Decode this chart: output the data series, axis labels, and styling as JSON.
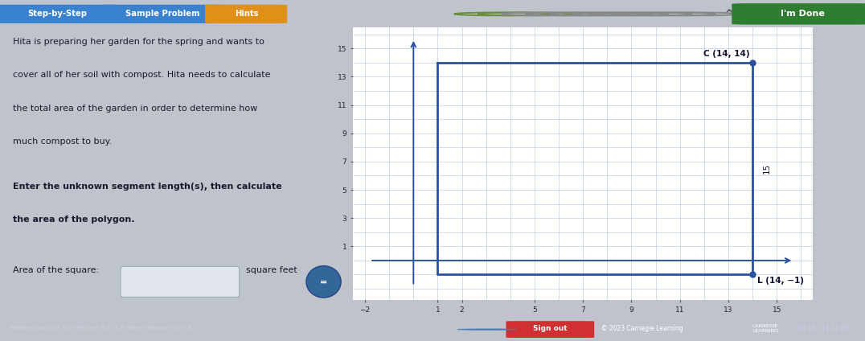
{
  "bg_color": "#bfc4cc",
  "top_bar_color": "#dde0e5",
  "left_panel_bg": "#cdd0d8",
  "btn_step_color": "#3a82d0",
  "btn_sample_color": "#3a82d0",
  "btn_hints_color": "#e09018",
  "btn_done_color": "#2e7d32",
  "btn_signout_color": "#d03030",
  "description_text_lines": [
    "Hita is preparing her garden for the spring and wants to",
    "cover all of her soil with compost. Hita needs to calculate",
    "the total area of the garden in order to determine how",
    "much compost to buy."
  ],
  "instruction_text_lines": [
    "Enter the unknown segment length(s), then calculate",
    "the area of the polygon."
  ],
  "area_label": "Area of the square:",
  "area_unit": "square feet",
  "point_C": [
    14,
    14
  ],
  "point_L": [
    14,
    -1
  ],
  "point_TL": [
    1,
    14
  ],
  "point_BL": [
    1,
    -1
  ],
  "label_C": "C (14, 14)",
  "label_L": "L (14, −1)",
  "side_label": "15",
  "grid_color": "#b0c4de",
  "square_color": "#2a50a0",
  "axis_color": "#2a50a0",
  "xmin": -2,
  "xmax": 16,
  "ymin": -2,
  "ymax": 16,
  "xticks": [
    -2,
    1,
    2,
    5,
    7,
    9,
    11,
    13,
    15
  ],
  "yticks": [
    1,
    3,
    5,
    7,
    9,
    11,
    13,
    15
  ],
  "copyright": "© 2023 Carnegie Learning",
  "carnegie_logo": "CARNEGIE\nLEARNING",
  "bottom_bar_color": "#3a6eb5",
  "footer_text": "Problem Group 07  Curr Section: 9.6, 1.5  Server Version: 9.6.7.8",
  "circle_colors": [
    "#6b8e3e",
    "#6b8e3e",
    "#888888",
    "#888888",
    "#888888",
    "#888888",
    "#888888",
    "#888888",
    "#888888"
  ],
  "circle_fill": [
    false,
    false,
    false,
    false,
    false,
    false,
    false,
    false,
    false
  ]
}
